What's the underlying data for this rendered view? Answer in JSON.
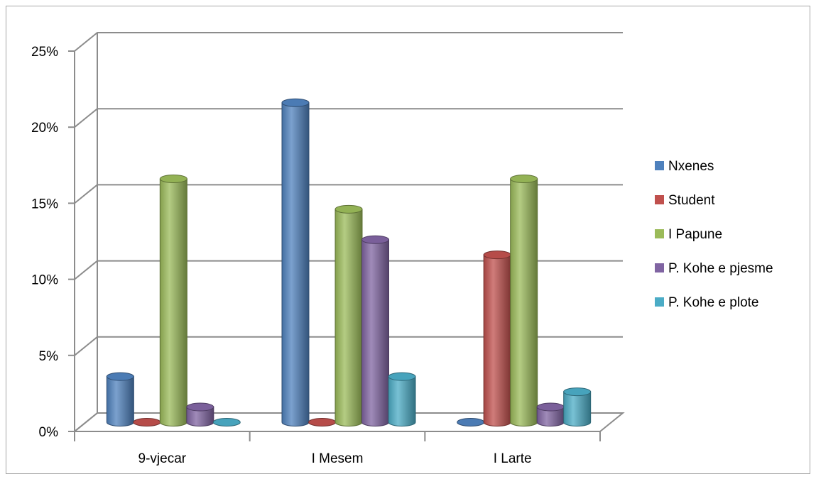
{
  "chart_data": {
    "type": "bar",
    "style": "3d-cylinder",
    "categories": [
      "9-vjecar",
      "I Mesem",
      "I Larte"
    ],
    "series": [
      {
        "name": "Nxenes",
        "color": "#4f81bd",
        "values": [
          3,
          21,
          0
        ]
      },
      {
        "name": "Student",
        "color": "#c0504d",
        "values": [
          0,
          0,
          11
        ]
      },
      {
        "name": "I Papune",
        "color": "#9bbb59",
        "values": [
          16,
          14,
          16
        ]
      },
      {
        "name": "P. Kohe e pjesme",
        "color": "#8064a2",
        "values": [
          1,
          12,
          1
        ]
      },
      {
        "name": "P. Kohe e plote",
        "color": "#4bacc6",
        "values": [
          0,
          3,
          2
        ]
      }
    ],
    "y_ticks": [
      "0%",
      "5%",
      "10%",
      "15%",
      "20%",
      "25%"
    ],
    "ylim": [
      0,
      25
    ],
    "y_unit": "%",
    "grid": true,
    "legend_position": "right"
  }
}
